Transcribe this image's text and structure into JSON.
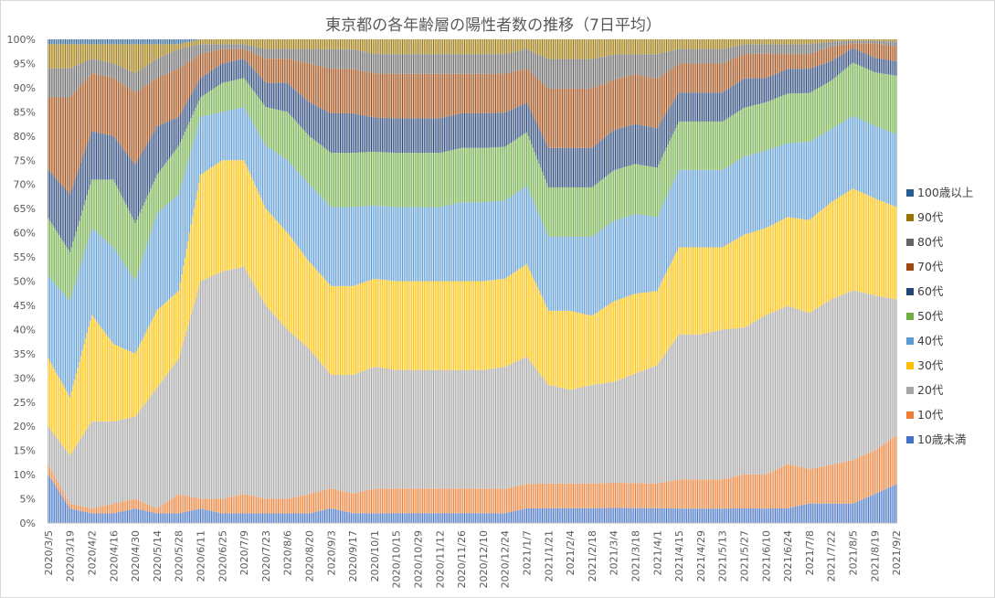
{
  "chart_data": {
    "type": "bar",
    "stacked": "percent",
    "title": "東京都の各年齢層の陽性者数の推移（7日平均）",
    "xlabel": "",
    "ylabel": "",
    "ylim": [
      0,
      100
    ],
    "y_ticks": [
      "0%",
      "5%",
      "10%",
      "15%",
      "20%",
      "25%",
      "30%",
      "35%",
      "40%",
      "45%",
      "50%",
      "55%",
      "60%",
      "65%",
      "70%",
      "75%",
      "80%",
      "85%",
      "90%",
      "95%",
      "100%"
    ],
    "grid": false,
    "legend_position": "right",
    "x_tick_labels": [
      "2020/3/5",
      "2020/3/19",
      "2020/4/2",
      "2020/4/16",
      "2020/4/30",
      "2020/5/14",
      "2020/5/28",
      "2020/6/11",
      "2020/6/25",
      "2020/7/9",
      "2020/7/23",
      "2020/8/6",
      "2020/8/20",
      "2020/9/3",
      "2020/9/17",
      "2020/10/1",
      "2020/10/15",
      "2020/10/29",
      "2020/11/12",
      "2020/11/26",
      "2020/12/10",
      "2020/12/24",
      "2021/1/7",
      "2021/1/21",
      "2021/2/4",
      "2021/2/18",
      "2021/3/4",
      "2021/3/18",
      "2021/4/1",
      "2021/4/15",
      "2021/4/29",
      "2021/5/13",
      "2021/5/27",
      "2021/6/10",
      "2021/6/24",
      "2021/7/8",
      "2021/7/22",
      "2021/8/5",
      "2021/8/19",
      "2021/9/2"
    ],
    "x": [
      "2020/3/5",
      "2020/3/19",
      "2020/4/2",
      "2020/4/16",
      "2020/4/30",
      "2020/5/14",
      "2020/5/28",
      "2020/6/11",
      "2020/6/25",
      "2020/7/9",
      "2020/7/23",
      "2020/8/6",
      "2020/8/20",
      "2020/9/3",
      "2020/9/17",
      "2020/10/1",
      "2020/10/15",
      "2020/10/29",
      "2020/11/12",
      "2020/11/26",
      "2020/12/10",
      "2020/12/24",
      "2021/1/7",
      "2021/1/21",
      "2021/2/4",
      "2021/2/18",
      "2021/3/4",
      "2021/3/18",
      "2021/4/1",
      "2021/4/15",
      "2021/4/29",
      "2021/5/13",
      "2021/5/27",
      "2021/6/10",
      "2021/6/24",
      "2021/7/8",
      "2021/7/22",
      "2021/8/5",
      "2021/8/19",
      "2021/9/2"
    ],
    "series": [
      {
        "name": "10歳未満",
        "color": "#4472c4",
        "values": [
          10,
          3,
          2,
          2,
          3,
          2,
          2,
          3,
          2,
          2,
          2,
          2,
          2,
          3,
          2,
          2,
          2,
          2,
          2,
          2,
          2,
          2,
          3,
          3,
          3,
          3,
          3,
          3,
          3,
          3,
          3,
          3,
          3,
          3,
          3,
          4,
          4,
          4,
          6,
          8
        ]
      },
      {
        "name": "10代",
        "color": "#ed7d31",
        "values": [
          2,
          1,
          1,
          2,
          2,
          1,
          4,
          2,
          3,
          4,
          3,
          3,
          4,
          4,
          4,
          5,
          5,
          5,
          5,
          5,
          5,
          5,
          5,
          5,
          5,
          5,
          5,
          5,
          5,
          6,
          6,
          6,
          7,
          7,
          9,
          7,
          8,
          9,
          9,
          10
        ]
      },
      {
        "name": "20代",
        "color": "#a5a5a5",
        "values": [
          8,
          10,
          18,
          17,
          17,
          25,
          28,
          45,
          47,
          47,
          40,
          35,
          30,
          23,
          24,
          25,
          24,
          24,
          24,
          24,
          24,
          25,
          26,
          20,
          19,
          20,
          20,
          22,
          24,
          30,
          30,
          31,
          30,
          33,
          32,
          32,
          34,
          35,
          32,
          28
        ]
      },
      {
        "name": "30代",
        "color": "#ffc000",
        "values": [
          14,
          12,
          22,
          16,
          13,
          16,
          14,
          22,
          23,
          22,
          20,
          20,
          18,
          18,
          18,
          18,
          18,
          18,
          18,
          18,
          18,
          18,
          19,
          15,
          16,
          14,
          16,
          16,
          15,
          18,
          18,
          17,
          19,
          18,
          18,
          19,
          20,
          21,
          20,
          19
        ]
      },
      {
        "name": "40代",
        "color": "#5b9bd5",
        "values": [
          17,
          20,
          18,
          20,
          15,
          20,
          20,
          12,
          10,
          11,
          13,
          15,
          16,
          16,
          16,
          15,
          15,
          15,
          15,
          16,
          16,
          16,
          16,
          15,
          15,
          16,
          16,
          16,
          15,
          16,
          16,
          16,
          16,
          16,
          15,
          16,
          15,
          15,
          15,
          15
        ]
      },
      {
        "name": "50代",
        "color": "#70ad47",
        "values": [
          12,
          10,
          10,
          14,
          12,
          8,
          10,
          4,
          6,
          6,
          8,
          10,
          10,
          11,
          11,
          11,
          11,
          11,
          11,
          11,
          11,
          11,
          11,
          10,
          10,
          10,
          10,
          10,
          10,
          10,
          10,
          10,
          10,
          10,
          10,
          10,
          10,
          11,
          11,
          12
        ]
      },
      {
        "name": "60代",
        "color": "#264478",
        "values": [
          10,
          12,
          10,
          9,
          12,
          10,
          6,
          4,
          4,
          4,
          5,
          6,
          7,
          8,
          8,
          7,
          7,
          7,
          7,
          7,
          7,
          7,
          6,
          8,
          8,
          8,
          8,
          8,
          8,
          6,
          6,
          6,
          6,
          5,
          5,
          5,
          4,
          3,
          3,
          3
        ]
      },
      {
        "name": "70代",
        "color": "#9e480e",
        "values": [
          15,
          20,
          12,
          12,
          15,
          10,
          10,
          5,
          3,
          2,
          5,
          5,
          8,
          9,
          9,
          9,
          9,
          9,
          9,
          8,
          8,
          8,
          7,
          12,
          12,
          12,
          10,
          10,
          10,
          6,
          6,
          6,
          5,
          5,
          3,
          3,
          3,
          1,
          3,
          3
        ]
      },
      {
        "name": "80代",
        "color": "#636363",
        "values": [
          6,
          6,
          3,
          3,
          4,
          4,
          4,
          2,
          1,
          1,
          2,
          2,
          3,
          4,
          4,
          4,
          4,
          4,
          4,
          4,
          4,
          4,
          4,
          6,
          6,
          6,
          5,
          4,
          5,
          3,
          3,
          3,
          2,
          2,
          2,
          2,
          1,
          0.5,
          0.5,
          1
        ]
      },
      {
        "name": "90代",
        "color": "#997300",
        "values": [
          5,
          5,
          3,
          4,
          6,
          3,
          1,
          1,
          1,
          1,
          2,
          2,
          2,
          2,
          2,
          3,
          3,
          3,
          3,
          3,
          3,
          3,
          2,
          4,
          4,
          4,
          3,
          3,
          3,
          2,
          2,
          2,
          1,
          1,
          1,
          1,
          0.5,
          0.3,
          0.3,
          0.5
        ]
      },
      {
        "name": "100歳以上",
        "color": "#255e91",
        "values": [
          1,
          1,
          1,
          1,
          1,
          1,
          1,
          0,
          0,
          0,
          0,
          0,
          0,
          0,
          0,
          0,
          0,
          0,
          0,
          0,
          0,
          0,
          0,
          0,
          0,
          0,
          0,
          0,
          0,
          0,
          0,
          0,
          0,
          0,
          0,
          0,
          0,
          0,
          0,
          0
        ]
      }
    ]
  }
}
